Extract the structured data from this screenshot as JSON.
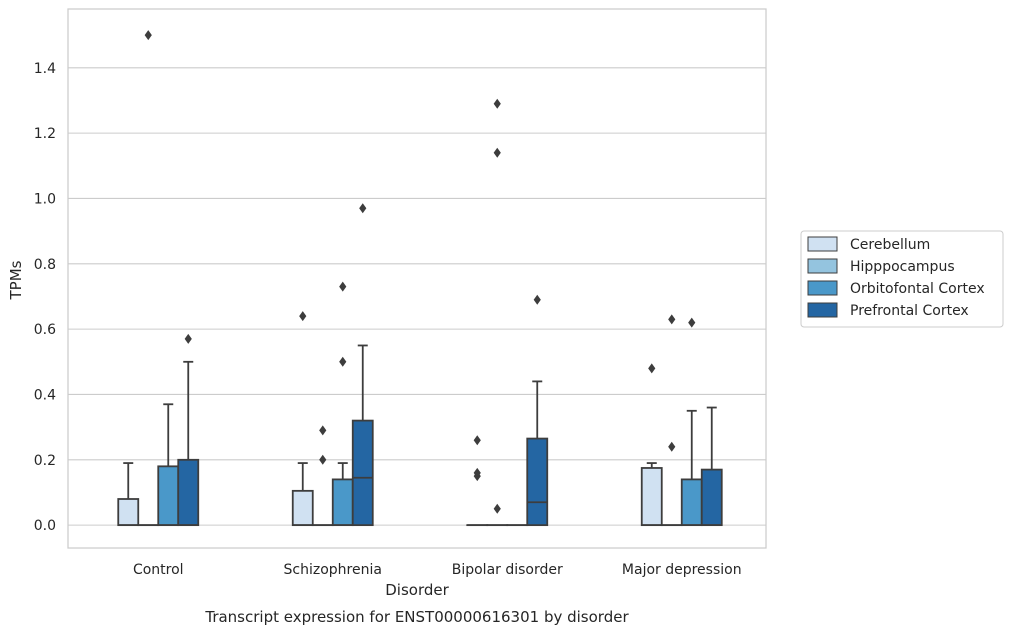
{
  "chart_data": {
    "type": "box",
    "caption": "Transcript expression for ENST00000616301 by disorder",
    "xlabel": "Disorder",
    "ylabel": "TPMs",
    "ylim": [
      -0.07,
      1.58
    ],
    "yticks": [
      "0.0",
      "0.2",
      "0.4",
      "0.6",
      "0.8",
      "1.0",
      "1.2",
      "1.4"
    ],
    "grid": "horizontal",
    "legend_position": "right",
    "categories": [
      "Control",
      "Schizophrenia",
      "Bipolar disorder",
      "Major depression"
    ],
    "colors": {
      "Cerebellum": "#d0e1f2",
      "Hipppocampus": "#94c4df",
      "Orbitofontal Cortex": "#4a98c9",
      "Prefrontal Cortex": "#2466a3"
    },
    "series": [
      {
        "name": "Cerebellum",
        "boxes": [
          {
            "q1": 0.0,
            "median": 0.0,
            "q3": 0.08,
            "whislo": 0.0,
            "whishi": 0.19,
            "fliers": []
          },
          {
            "q1": 0.0,
            "median": 0.0,
            "q3": 0.105,
            "whislo": 0.0,
            "whishi": 0.19,
            "fliers": [
              0.64
            ]
          },
          {
            "q1": 0.0,
            "median": 0.0,
            "q3": 0.0,
            "whislo": 0.0,
            "whishi": 0.0,
            "fliers": [
              0.15,
              0.16,
              0.26
            ]
          },
          {
            "q1": 0.0,
            "median": 0.0,
            "q3": 0.175,
            "whislo": 0.0,
            "whishi": 0.19,
            "fliers": [
              0.48
            ]
          }
        ]
      },
      {
        "name": "Hipppocampus",
        "boxes": [
          {
            "q1": 0.0,
            "median": 0.0,
            "q3": 0.0,
            "whislo": 0.0,
            "whishi": 0.0,
            "fliers": [
              1.5
            ]
          },
          {
            "q1": 0.0,
            "median": 0.0,
            "q3": 0.0,
            "whislo": 0.0,
            "whishi": 0.0,
            "fliers": [
              0.2,
              0.29
            ]
          },
          {
            "q1": 0.0,
            "median": 0.0,
            "q3": 0.0,
            "whislo": 0.0,
            "whishi": 0.0,
            "fliers": [
              0.05,
              1.14,
              1.29
            ]
          },
          {
            "q1": 0.0,
            "median": 0.0,
            "q3": 0.0,
            "whislo": 0.0,
            "whishi": 0.0,
            "fliers": [
              0.24,
              0.63
            ]
          }
        ]
      },
      {
        "name": "Orbitofontal Cortex",
        "boxes": [
          {
            "q1": 0.0,
            "median": 0.0,
            "q3": 0.18,
            "whislo": 0.0,
            "whishi": 0.37,
            "fliers": []
          },
          {
            "q1": 0.0,
            "median": 0.0,
            "q3": 0.14,
            "whislo": 0.0,
            "whishi": 0.19,
            "fliers": [
              0.5,
              0.73
            ]
          },
          {
            "q1": 0.0,
            "median": 0.0,
            "q3": 0.0,
            "whislo": 0.0,
            "whishi": 0.0,
            "fliers": []
          },
          {
            "q1": 0.0,
            "median": 0.0,
            "q3": 0.14,
            "whislo": 0.0,
            "whishi": 0.35,
            "fliers": [
              0.62
            ]
          }
        ]
      },
      {
        "name": "Prefrontal Cortex",
        "boxes": [
          {
            "q1": 0.0,
            "median": 0.0,
            "q3": 0.2,
            "whislo": 0.0,
            "whishi": 0.5,
            "fliers": [
              0.57
            ]
          },
          {
            "q1": 0.0,
            "median": 0.145,
            "q3": 0.32,
            "whislo": 0.0,
            "whishi": 0.55,
            "fliers": [
              0.97
            ]
          },
          {
            "q1": 0.0,
            "median": 0.07,
            "q3": 0.265,
            "whislo": 0.0,
            "whishi": 0.44,
            "fliers": [
              0.69
            ]
          },
          {
            "q1": 0.0,
            "median": 0.0,
            "q3": 0.17,
            "whislo": 0.0,
            "whishi": 0.36,
            "fliers": []
          }
        ]
      }
    ]
  }
}
